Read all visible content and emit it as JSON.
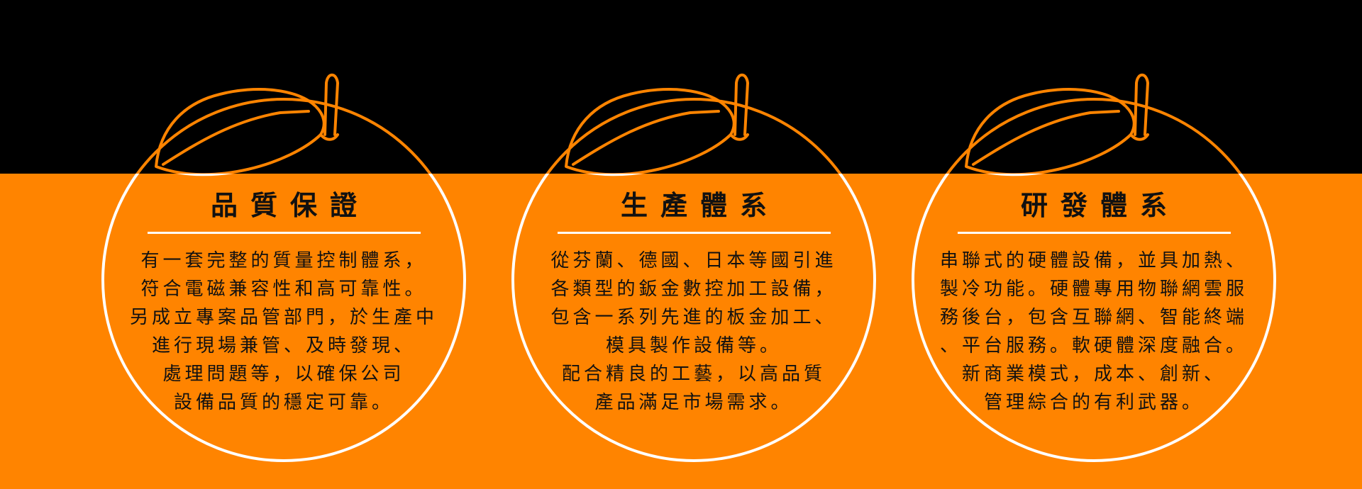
{
  "colors": {
    "top_band": "#000000",
    "bottom_band": "#ff8400",
    "outline_orange": "#ff8400",
    "outline_white": "#ffffff",
    "text": "#111111"
  },
  "cards": [
    {
      "title": "品質保證",
      "lines": [
        "有一套完整的質量控制體系，",
        "符合電磁兼容性和高可靠性。",
        "另成立專案品管部門，於生產中",
        "進行現場兼管、及時發現、",
        "處理問題等，以確保公司",
        "設備品質的穩定可靠。"
      ]
    },
    {
      "title": "生產體系",
      "lines": [
        "從芬蘭、德國、日本等國引進",
        "各類型的鈑金數控加工設備，",
        "包含一系列先進的板金加工、",
        "模具製作設備等。",
        "配合精良的工藝，以高品質",
        "產品滿足市場需求。"
      ]
    },
    {
      "title": "研發體系",
      "lines": [
        "串聯式的硬體設備，並具加熱、",
        "製冷功能。硬體專用物聯網雲服",
        "務後台，包含互聯網、智能終端",
        "、平台服務。軟硬體深度融合。",
        "新商業模式，成本、創新、",
        "管理綜合的有利武器。"
      ]
    }
  ]
}
